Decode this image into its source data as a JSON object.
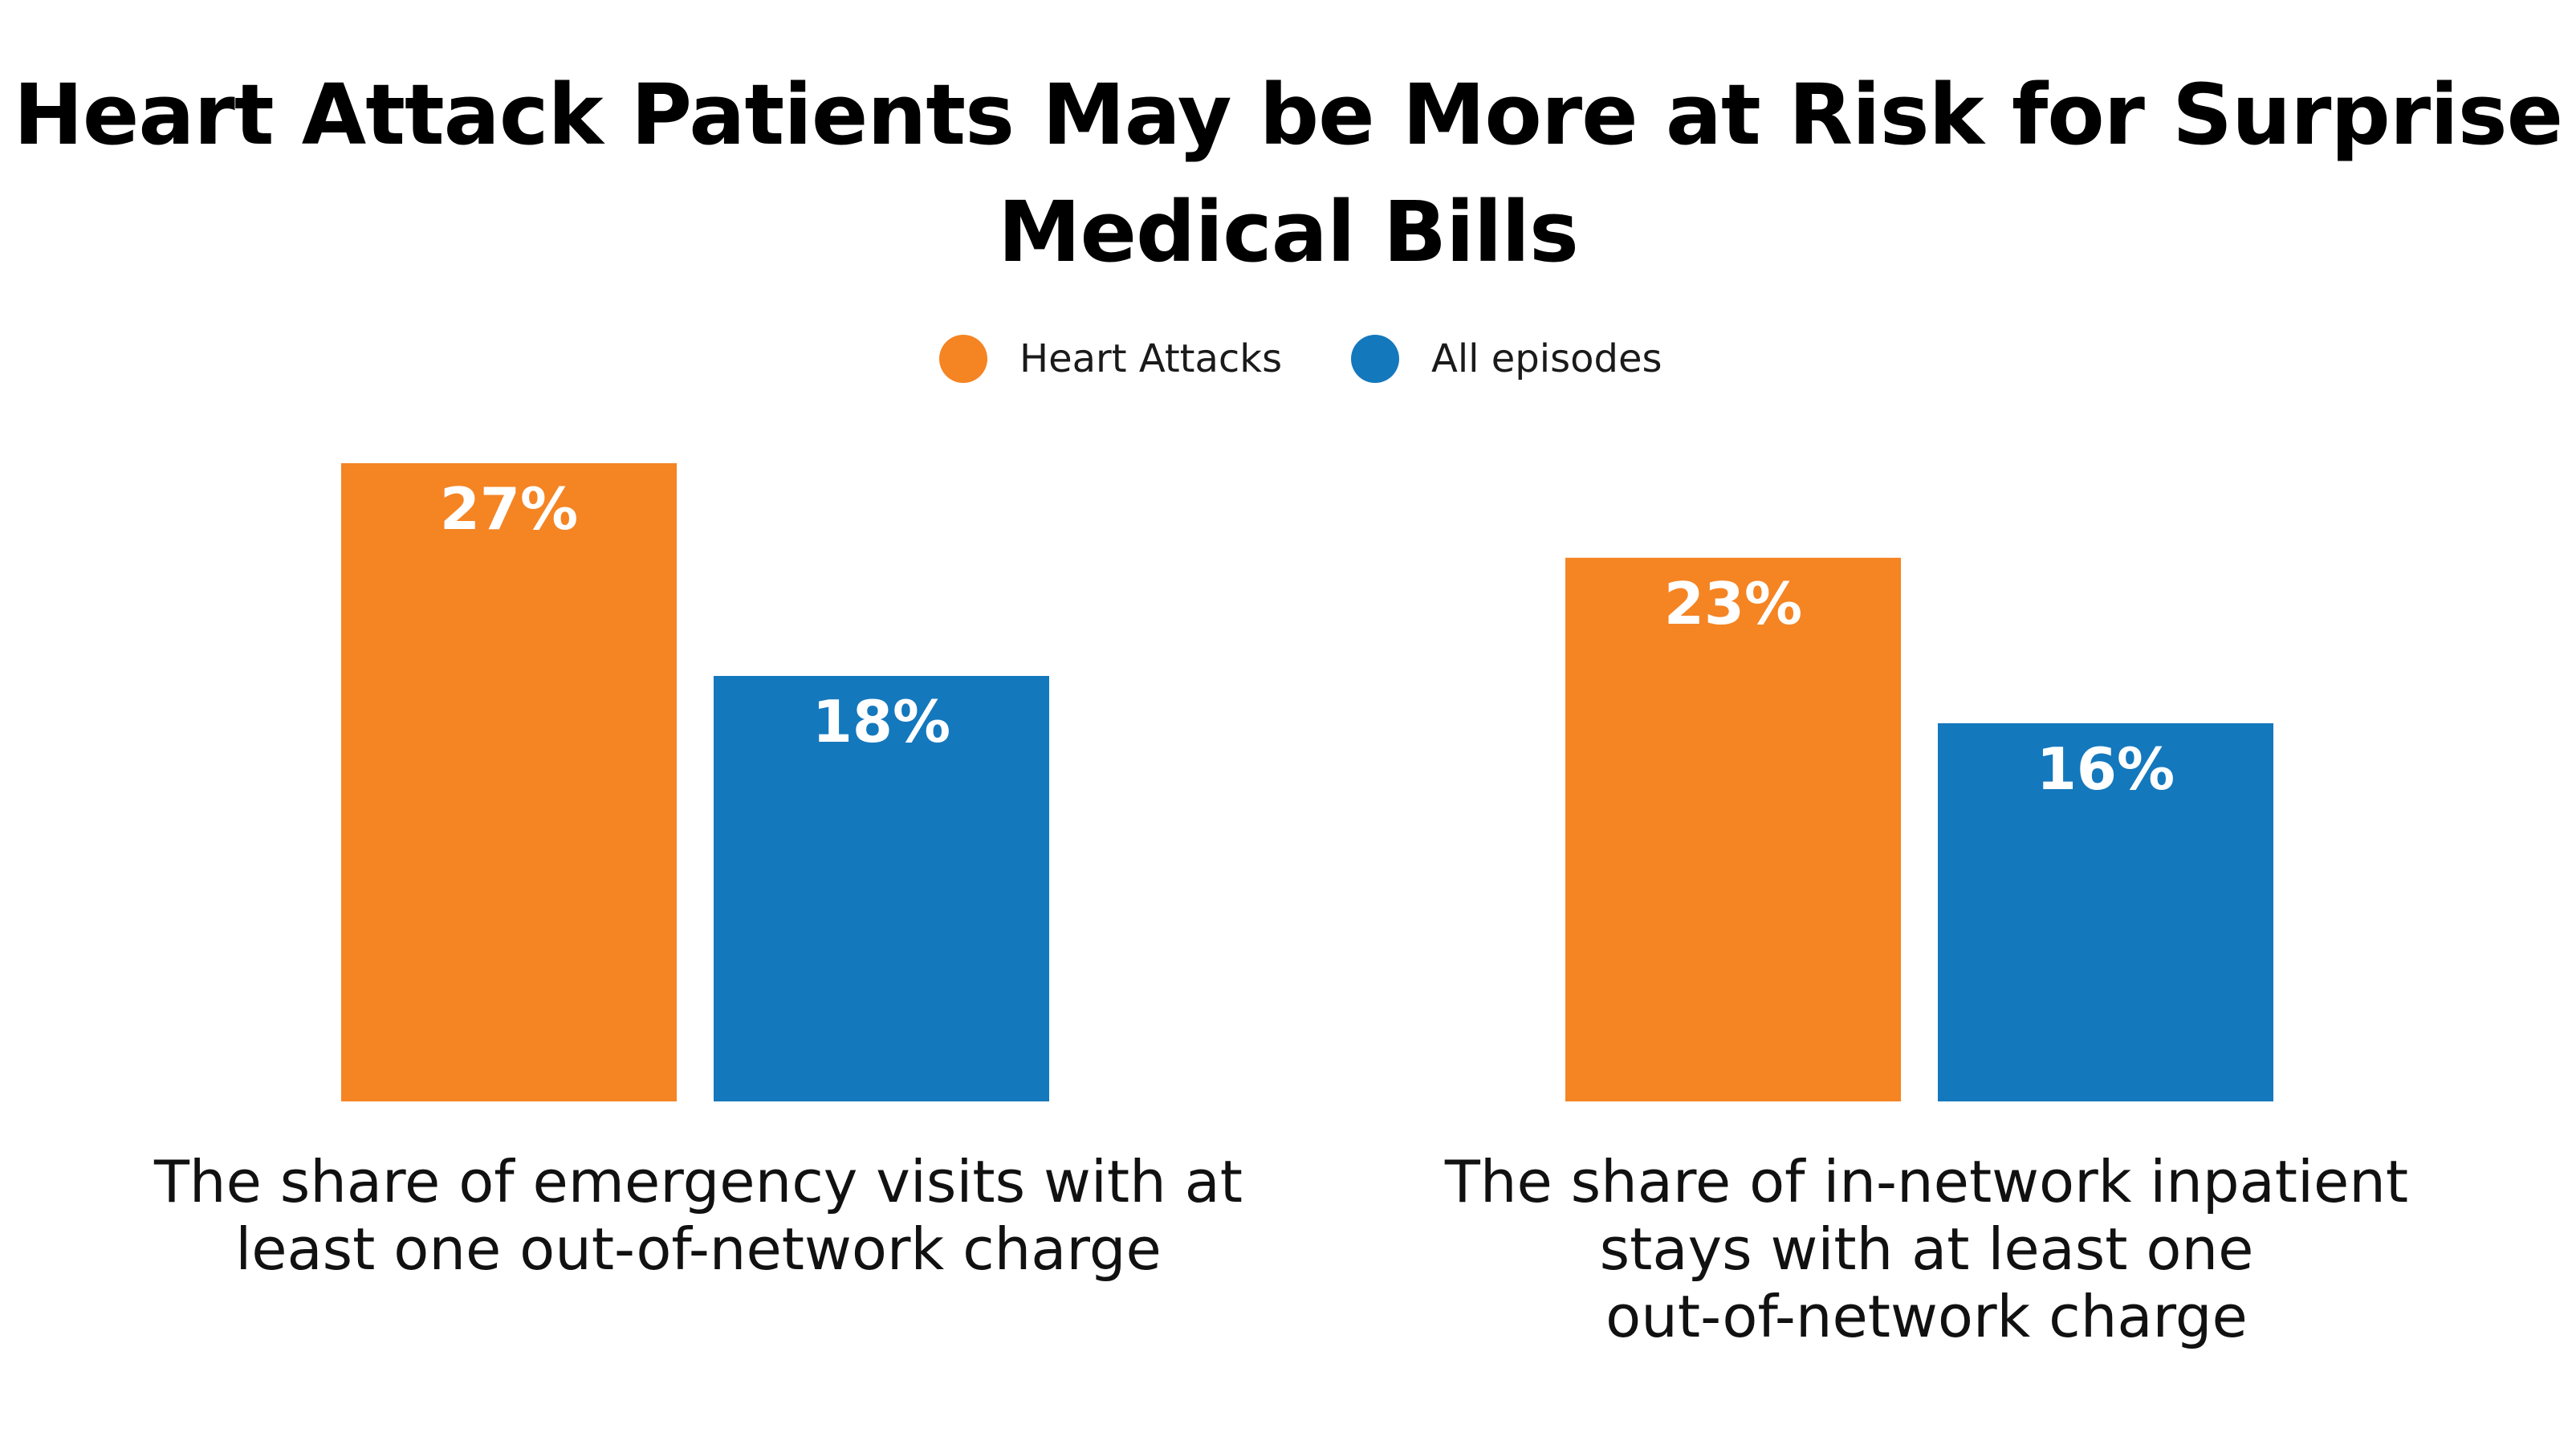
{
  "chart_data": {
    "type": "bar",
    "title": "Heart Attack Patients May be More at Risk for Surprise Medical Bills",
    "categories": [
      "The share of emergency visits with at\nleast one out-of-network charge",
      "The share of in-network inpatient\nstays with at least one\nout-of-network charge"
    ],
    "series": [
      {
        "name": "Heart Attacks",
        "color": "#F58423",
        "values": [
          27,
          23
        ],
        "labels": [
          "27%",
          "23%"
        ]
      },
      {
        "name": "All episodes",
        "color": "#1478BD",
        "values": [
          18,
          16
        ],
        "labels": [
          "18%",
          "16%"
        ]
      }
    ],
    "ylim": [
      0,
      27
    ],
    "xlabel": "",
    "ylabel": "",
    "grid": false,
    "legend": "top-center"
  }
}
